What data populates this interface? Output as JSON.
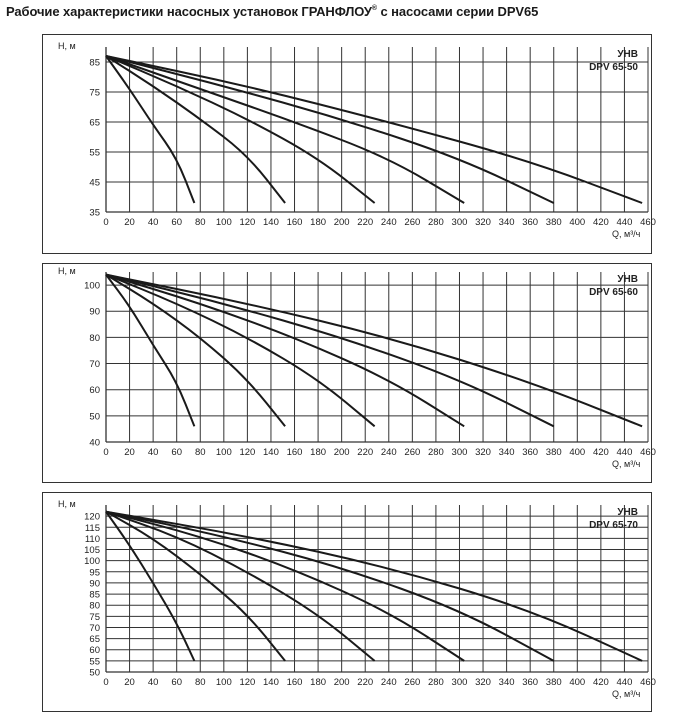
{
  "page": {
    "title_main": "Рабочие характеристики насосных установок  ГРАНФЛОУ",
    "title_reg": "®",
    "title_tail": " с насосами серии DPV65"
  },
  "chart_data": [
    {
      "type": "line",
      "model_line1": "УНВ",
      "model_line2": "DPV 65-50",
      "ylabel": "H, м",
      "xlabel": "Q, м³/ч",
      "xlim": [
        0,
        460
      ],
      "ylim": [
        35,
        90
      ],
      "xticks": [
        0,
        20,
        40,
        60,
        80,
        100,
        120,
        140,
        160,
        180,
        200,
        220,
        240,
        260,
        280,
        300,
        320,
        340,
        360,
        380,
        400,
        420,
        440,
        460
      ],
      "yticks": [
        35,
        45,
        55,
        65,
        75,
        85
      ],
      "series": [
        {
          "x": [
            0,
            20,
            40,
            60,
            75
          ],
          "y": [
            87,
            76,
            64,
            53,
            38
          ]
        },
        {
          "x": [
            0,
            40,
            80,
            120,
            152
          ],
          "y": [
            87,
            77,
            66,
            54,
            38
          ]
        },
        {
          "x": [
            0,
            60,
            120,
            180,
            228
          ],
          "y": [
            87,
            77,
            66,
            53,
            38
          ]
        },
        {
          "x": [
            0,
            80,
            160,
            240,
            304
          ],
          "y": [
            87,
            76,
            65,
            53,
            38
          ]
        },
        {
          "x": [
            0,
            100,
            200,
            300,
            380
          ],
          "y": [
            87,
            77,
            66,
            53,
            38
          ]
        },
        {
          "x": [
            0,
            120,
            240,
            360,
            455
          ],
          "y": [
            87,
            77,
            65,
            52,
            38
          ]
        }
      ]
    },
    {
      "type": "line",
      "model_line1": "УНВ",
      "model_line2": "DPV 65-60",
      "ylabel": "H, м",
      "xlabel": "Q, м³/ч",
      "xlim": [
        0,
        460
      ],
      "ylim": [
        40,
        105
      ],
      "xticks": [
        0,
        20,
        40,
        60,
        80,
        100,
        120,
        140,
        160,
        180,
        200,
        220,
        240,
        260,
        280,
        300,
        320,
        340,
        360,
        380,
        400,
        420,
        440,
        460
      ],
      "yticks": [
        40,
        50,
        60,
        70,
        80,
        90,
        100
      ],
      "series": [
        {
          "x": [
            0,
            20,
            40,
            60,
            75
          ],
          "y": [
            104,
            92,
            77,
            63,
            46
          ]
        },
        {
          "x": [
            0,
            40,
            80,
            120,
            152
          ],
          "y": [
            104,
            93,
            80,
            64,
            46
          ]
        },
        {
          "x": [
            0,
            60,
            120,
            180,
            228
          ],
          "y": [
            104,
            93,
            80,
            64,
            46
          ]
        },
        {
          "x": [
            0,
            80,
            160,
            240,
            304
          ],
          "y": [
            104,
            93,
            80,
            64,
            46
          ]
        },
        {
          "x": [
            0,
            100,
            200,
            300,
            380
          ],
          "y": [
            104,
            93,
            80,
            64,
            46
          ]
        },
        {
          "x": [
            0,
            120,
            240,
            360,
            455
          ],
          "y": [
            104,
            93,
            80,
            63,
            46
          ]
        }
      ]
    },
    {
      "type": "line",
      "model_line1": "УНВ",
      "model_line2": "DPV 65-70",
      "ylabel": "H, м",
      "xlabel": "Q, м³/ч",
      "xlim": [
        0,
        460
      ],
      "ylim": [
        50,
        125
      ],
      "xticks": [
        0,
        20,
        40,
        60,
        80,
        100,
        120,
        140,
        160,
        180,
        200,
        220,
        240,
        260,
        280,
        300,
        320,
        340,
        360,
        380,
        400,
        420,
        440,
        460
      ],
      "yticks": [
        50,
        55,
        60,
        65,
        70,
        75,
        80,
        85,
        90,
        95,
        100,
        105,
        110,
        115,
        120
      ],
      "series": [
        {
          "x": [
            0,
            20,
            40,
            60,
            75
          ],
          "y": [
            122,
            107,
            90,
            72,
            55
          ]
        },
        {
          "x": [
            0,
            40,
            80,
            120,
            152
          ],
          "y": [
            122,
            110,
            94,
            76,
            55
          ]
        },
        {
          "x": [
            0,
            60,
            120,
            180,
            228
          ],
          "y": [
            122,
            111,
            95,
            76,
            55
          ]
        },
        {
          "x": [
            0,
            80,
            160,
            240,
            304
          ],
          "y": [
            122,
            111,
            96,
            77,
            55
          ]
        },
        {
          "x": [
            0,
            100,
            200,
            300,
            380
          ],
          "y": [
            122,
            111,
            97,
            78,
            55
          ]
        },
        {
          "x": [
            0,
            120,
            240,
            360,
            455
          ],
          "y": [
            122,
            111,
            97,
            78,
            55
          ]
        }
      ]
    }
  ]
}
